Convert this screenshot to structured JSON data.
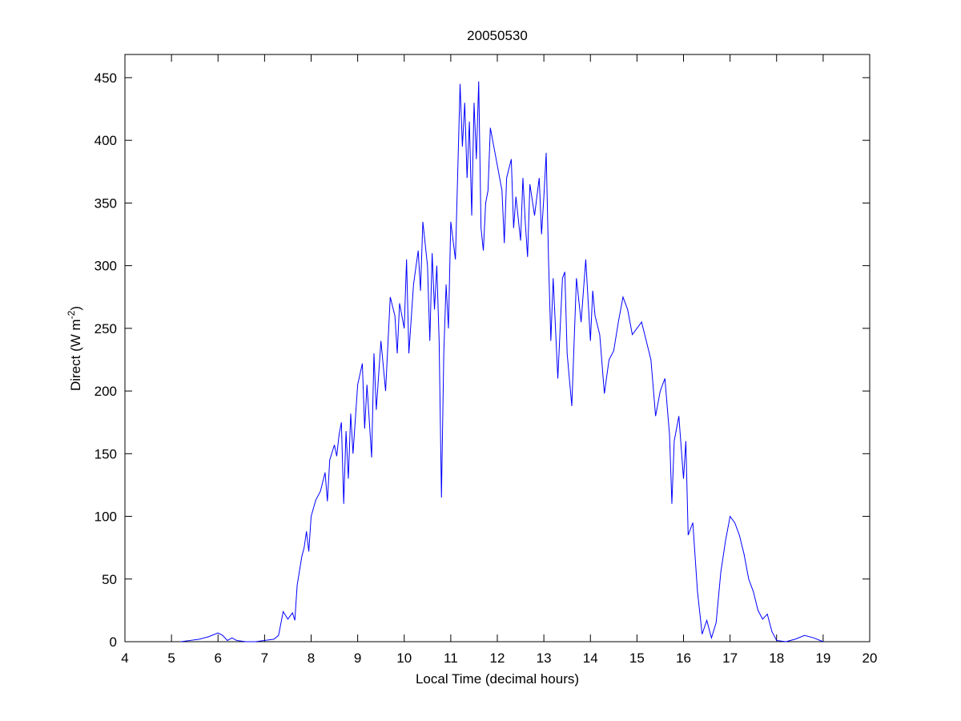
{
  "chart_data": {
    "type": "line",
    "title": "20050530",
    "xlabel": "Local Time (decimal hours)",
    "ylabel": [
      "Direct (W m",
      "-2",
      ")"
    ],
    "xlim": [
      4,
      20
    ],
    "xticks": [
      4,
      5,
      6,
      7,
      8,
      9,
      10,
      11,
      12,
      13,
      14,
      15,
      16,
      17,
      18,
      19,
      20
    ],
    "ylim": [
      0,
      468.5
    ],
    "yticks": [
      0,
      50,
      100,
      150,
      200,
      250,
      300,
      350,
      400,
      450
    ],
    "series": [
      {
        "color": "#0000ff",
        "x": [
          5.2,
          5.4,
          5.6,
          5.8,
          6.0,
          6.1,
          6.2,
          6.3,
          6.4,
          6.6,
          6.8,
          7.0,
          7.2,
          7.3,
          7.4,
          7.5,
          7.6,
          7.65,
          7.7,
          7.8,
          7.85,
          7.9,
          7.95,
          8.0,
          8.1,
          8.2,
          8.3,
          8.35,
          8.4,
          8.5,
          8.55,
          8.6,
          8.65,
          8.7,
          8.75,
          8.8,
          8.85,
          8.9,
          9.0,
          9.1,
          9.15,
          9.2,
          9.3,
          9.35,
          9.4,
          9.5,
          9.55,
          9.6,
          9.7,
          9.8,
          9.85,
          9.9,
          10.0,
          10.05,
          10.1,
          10.2,
          10.3,
          10.35,
          10.4,
          10.5,
          10.55,
          10.6,
          10.65,
          10.7,
          10.75,
          10.8,
          10.85,
          10.9,
          10.95,
          11.0,
          11.1,
          11.2,
          11.25,
          11.3,
          11.35,
          11.4,
          11.45,
          11.5,
          11.55,
          11.6,
          11.65,
          11.7,
          11.75,
          11.8,
          11.85,
          11.9,
          12.0,
          12.1,
          12.15,
          12.2,
          12.3,
          12.35,
          12.4,
          12.5,
          12.55,
          12.6,
          12.65,
          12.7,
          12.8,
          12.9,
          12.95,
          13.0,
          13.05,
          13.1,
          13.15,
          13.2,
          13.3,
          13.4,
          13.45,
          13.5,
          13.6,
          13.7,
          13.8,
          13.9,
          14.0,
          14.05,
          14.1,
          14.2,
          14.3,
          14.4,
          14.5,
          14.6,
          14.7,
          14.8,
          14.9,
          15.0,
          15.1,
          15.2,
          15.3,
          15.4,
          15.5,
          15.6,
          15.7,
          15.75,
          15.8,
          15.9,
          16.0,
          16.05,
          16.1,
          16.2,
          16.3,
          16.4,
          16.5,
          16.6,
          16.7,
          16.8,
          16.9,
          17.0,
          17.1,
          17.2,
          17.3,
          17.4,
          17.5,
          17.6,
          17.7,
          17.8,
          17.9,
          18.0,
          18.2,
          18.4,
          18.6,
          18.8,
          19.0
        ],
        "values": [
          0,
          1,
          2,
          4,
          7,
          5,
          1,
          3,
          1,
          0,
          0,
          1,
          2,
          5,
          24,
          18,
          23,
          17,
          45,
          68,
          75,
          88,
          72,
          100,
          113,
          120,
          135,
          112,
          145,
          157,
          148,
          165,
          175,
          110,
          168,
          130,
          182,
          150,
          205,
          222,
          170,
          205,
          147,
          230,
          185,
          240,
          220,
          200,
          275,
          260,
          230,
          270,
          250,
          305,
          230,
          285,
          312,
          280,
          335,
          300,
          240,
          310,
          265,
          300,
          240,
          115,
          230,
          285,
          250,
          335,
          305,
          445,
          395,
          430,
          370,
          415,
          340,
          430,
          385,
          447,
          330,
          312,
          350,
          360,
          410,
          400,
          380,
          360,
          318,
          370,
          385,
          330,
          355,
          320,
          370,
          335,
          307,
          365,
          340,
          370,
          325,
          355,
          390,
          305,
          240,
          290,
          210,
          290,
          295,
          230,
          188,
          290,
          255,
          305,
          240,
          280,
          260,
          245,
          198,
          225,
          232,
          255,
          275,
          265,
          245,
          250,
          255,
          240,
          225,
          180,
          200,
          210,
          165,
          110,
          160,
          180,
          130,
          160,
          85,
          95,
          40,
          6,
          17,
          3,
          15,
          55,
          80,
          100,
          95,
          85,
          70,
          50,
          40,
          25,
          18,
          22,
          8,
          1,
          0,
          2,
          5,
          3,
          0
        ]
      }
    ]
  }
}
